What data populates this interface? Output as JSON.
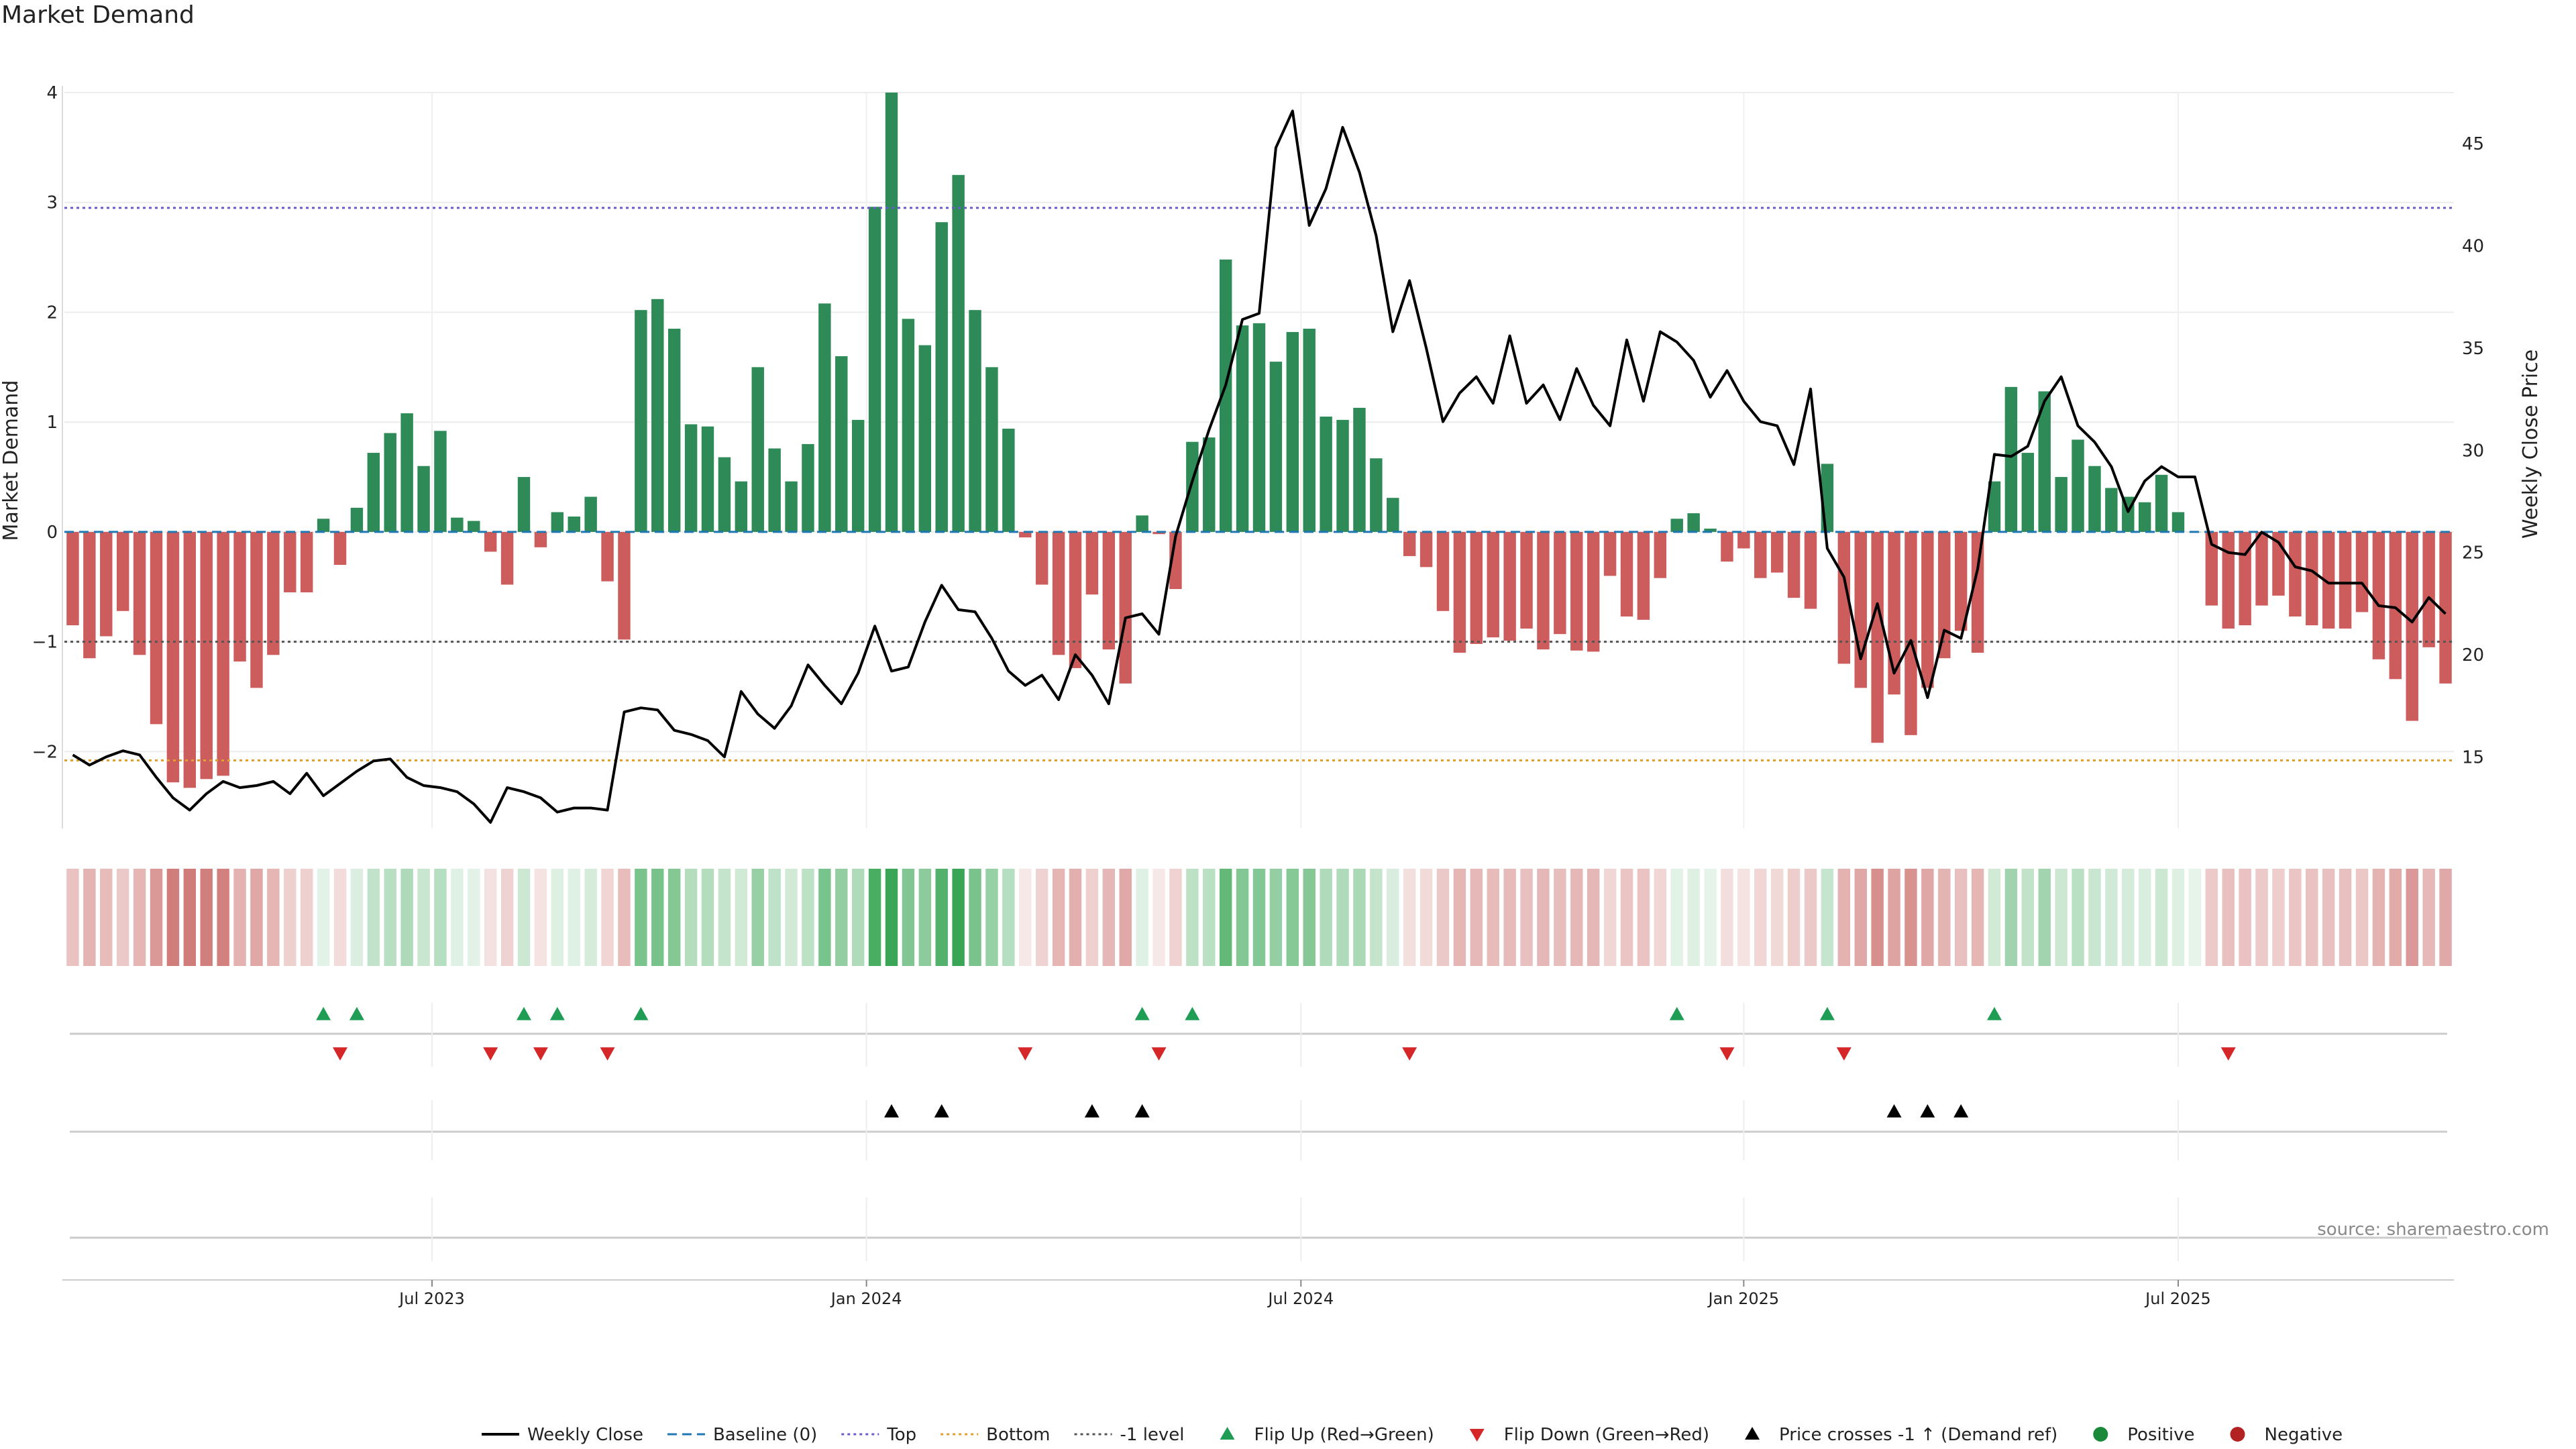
{
  "chart_data": {
    "type": "bar",
    "title": "Market Demand",
    "source": "source: sharemaestro.com",
    "ylabel": "Market Demand",
    "ylabel_right": "Weekly Close Price",
    "ylim": [
      -2.7,
      4.0
    ],
    "ylim_right": [
      11.5,
      47.5
    ],
    "yticks": [
      -2,
      -1,
      0,
      1,
      2,
      3,
      4
    ],
    "yticks_right": [
      15,
      20,
      25,
      30,
      35,
      40,
      45
    ],
    "ytick_labels": [
      "−2",
      "−1",
      "0",
      "1",
      "2",
      "3",
      "4"
    ],
    "yticks_right_labels": [
      "15",
      "20",
      "25",
      "30",
      "35",
      "40",
      "45"
    ],
    "reference_lines": {
      "baseline": 0,
      "top": 2.95,
      "bottom": -2.08,
      "minus_one": -1
    },
    "x_ticks": [
      {
        "label": "Jul 2023",
        "index": 22
      },
      {
        "label": "Jan 2024",
        "index": 48
      },
      {
        "label": "Jul 2024",
        "index": 74
      },
      {
        "label": "Jan 2025",
        "index": 100.5
      },
      {
        "label": "Jul 2025",
        "index": 126.5
      }
    ],
    "demand": [
      -0.85,
      -1.15,
      -0.95,
      -0.72,
      -1.12,
      -1.75,
      -2.28,
      -2.33,
      -2.25,
      -2.22,
      -1.18,
      -1.42,
      -1.12,
      -0.55,
      -0.55,
      0.12,
      -0.3,
      0.22,
      0.72,
      0.9,
      1.08,
      0.6,
      0.92,
      0.13,
      0.1,
      -0.18,
      -0.48,
      0.5,
      -0.14,
      0.18,
      0.14,
      0.32,
      -0.45,
      -0.98,
      2.02,
      2.12,
      1.85,
      0.98,
      0.96,
      0.68,
      0.46,
      1.5,
      0.76,
      0.46,
      0.8,
      2.08,
      1.6,
      1.02,
      2.96,
      4.0,
      1.94,
      1.7,
      2.82,
      3.25,
      2.02,
      1.5,
      0.94,
      -0.05,
      -0.48,
      -1.12,
      -1.24,
      -0.57,
      -1.07,
      -1.38,
      0.15,
      -0.02,
      -0.52,
      0.82,
      0.86,
      2.48,
      1.88,
      1.9,
      1.55,
      1.82,
      1.85,
      1.05,
      1.02,
      1.13,
      0.67,
      0.31,
      -0.22,
      -0.32,
      -0.72,
      -1.1,
      -1.02,
      -0.96,
      -0.99,
      -0.88,
      -1.07,
      -0.93,
      -1.08,
      -1.09,
      -0.4,
      -0.77,
      -0.8,
      -0.42,
      0.12,
      0.17,
      0.03,
      -0.27,
      -0.15,
      -0.42,
      -0.37,
      -0.6,
      -0.7,
      0.62,
      -1.2,
      -1.42,
      -1.92,
      -1.48,
      -1.85,
      -1.42,
      -1.15,
      -0.9,
      -1.1,
      0.46,
      1.32,
      0.72,
      1.28,
      0.5,
      0.84,
      0.6,
      0.4,
      0.32,
      0.27,
      0.52,
      0.18,
      0.0,
      -0.67,
      -0.88,
      -0.85,
      -0.67,
      -0.58,
      -0.77,
      -0.85,
      -0.88,
      -0.88,
      -0.73,
      -1.16,
      -1.34,
      -1.72,
      -1.05,
      -1.38
    ],
    "weekly_close": [
      15.1,
      14.6,
      15.0,
      15.3,
      15.1,
      14.0,
      13.0,
      12.4,
      13.2,
      13.8,
      13.5,
      13.6,
      13.8,
      13.2,
      14.2,
      13.1,
      13.7,
      14.3,
      14.8,
      14.9,
      14.0,
      13.6,
      13.5,
      13.3,
      12.7,
      11.8,
      13.5,
      13.3,
      13.0,
      12.3,
      12.5,
      12.5,
      12.4,
      17.2,
      17.4,
      17.3,
      16.3,
      16.1,
      15.8,
      15.0,
      18.2,
      17.1,
      16.4,
      17.5,
      19.5,
      18.5,
      17.6,
      19.1,
      21.4,
      19.2,
      19.4,
      21.6,
      23.4,
      22.2,
      22.1,
      20.8,
      19.2,
      18.5,
      19.0,
      17.8,
      20.0,
      19.0,
      17.6,
      21.8,
      22.0,
      21.0,
      25.8,
      28.5,
      31.0,
      33.2,
      36.4,
      36.7,
      44.8,
      46.6,
      41.0,
      42.8,
      45.8,
      43.6,
      40.5,
      35.8,
      38.3,
      35.0,
      31.4,
      32.8,
      33.6,
      32.3,
      35.6,
      32.3,
      33.2,
      31.5,
      34.0,
      32.2,
      31.2,
      35.4,
      32.4,
      35.8,
      35.3,
      34.4,
      32.6,
      33.9,
      32.4,
      31.4,
      31.2,
      29.3,
      33.0,
      25.2,
      23.8,
      19.8,
      22.5,
      19.1,
      20.7,
      17.9,
      21.2,
      20.8,
      24.2,
      29.8,
      29.7,
      30.2,
      32.4,
      33.6,
      31.2,
      30.4,
      29.2,
      27.0,
      28.5,
      29.2,
      28.7,
      28.7,
      25.4,
      25.0,
      24.9,
      26.0,
      25.5,
      24.3,
      24.1,
      23.5,
      23.5,
      23.5,
      22.4,
      22.3,
      21.6,
      22.8,
      22.0
    ],
    "flip_up": [
      15,
      17,
      27,
      29,
      34,
      64,
      67,
      96,
      105,
      115
    ],
    "flip_down": [
      16,
      25,
      28,
      32,
      57,
      65,
      80,
      99,
      106,
      129
    ],
    "price_crosses": [
      49,
      52,
      61,
      64,
      109,
      111,
      113
    ],
    "legend": [
      {
        "label": "Weekly Close",
        "kind": "line-solid",
        "color": "#000000"
      },
      {
        "label": "Baseline (0)",
        "kind": "line-dashed",
        "color": "#1f77b4"
      },
      {
        "label": "Top",
        "kind": "line-dotted",
        "color": "#6a5acd"
      },
      {
        "label": "Bottom",
        "kind": "line-dotted",
        "color": "#e0a030"
      },
      {
        "label": "-1 level",
        "kind": "line-dotted",
        "color": "#555555"
      },
      {
        "label": "Flip Up (Red→Green)",
        "kind": "tri-up",
        "color": "#1f9d55"
      },
      {
        "label": "Flip Down (Green→Red)",
        "kind": "tri-down",
        "color": "#d62728"
      },
      {
        "label": "Price crosses -1 ↑ (Demand ref)",
        "kind": "tri-up",
        "color": "#000000"
      },
      {
        "label": "Positive",
        "kind": "dot",
        "color": "#1a8a3a"
      },
      {
        "label": "Negative",
        "kind": "dot",
        "color": "#b22222"
      }
    ],
    "colors": {
      "positive": "#2e8b57",
      "negative": "#cd5c5c",
      "heat_pos": "#3aa655",
      "heat_neg": "#c0504d"
    }
  }
}
